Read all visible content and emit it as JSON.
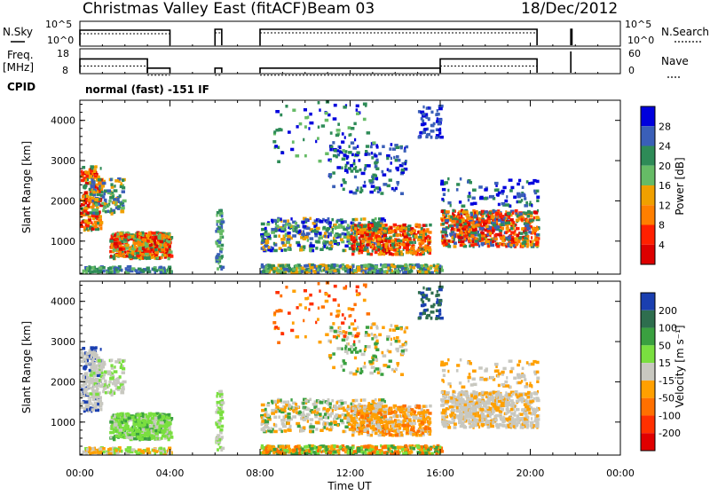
{
  "header": {
    "station": "Christmas Valley East (fitACF)",
    "beam": "Beam 03",
    "date": "18/Dec/2012"
  },
  "strip_labels": {
    "nsky": "N.Sky",
    "freq": "Freq.",
    "freq_unit": "[MHz]",
    "cpid": "CPID",
    "nsearch": "N.Search",
    "nave": "Nave"
  },
  "mode_label": "normal (fast) -151 IF",
  "colors": {
    "power": [
      "#0000dd",
      "#3a5fb8",
      "#2e8b57",
      "#66bb66",
      "#f0a000",
      "#ff7f00",
      "#ff2000",
      "#dd0000"
    ],
    "velocity": [
      "#1a3fb0",
      "#2e6e4e",
      "#3aa040",
      "#7adf40",
      "#c8c8c0",
      "#ffa000",
      "#ff7000",
      "#ff3000",
      "#e00000"
    ]
  },
  "chart_data": [
    {
      "type": "line",
      "title": "N.Sky / N.Search",
      "y_ticks_left": [
        "10^5",
        "10^0"
      ],
      "y_ticks_right": [
        "10^5",
        "10^0"
      ],
      "x_range_hours": [
        0,
        24
      ],
      "segments_hours": [
        [
          0.0,
          4.0
        ],
        [
          6.0,
          6.3
        ],
        [
          8.0,
          20.3
        ],
        [
          21.8,
          21.85
        ]
      ]
    },
    {
      "type": "line",
      "title": "Frequency / Nave",
      "y_ticks_left": [
        "18",
        "8"
      ],
      "y_ticks_right": [
        "60",
        "0"
      ],
      "x_range_hours": [
        0,
        24
      ],
      "freq_steps": [
        {
          "from": 0.0,
          "to": 3.0,
          "mhz": 14
        },
        {
          "from": 3.0,
          "to": 4.0,
          "mhz": 10
        },
        {
          "from": 6.0,
          "to": 6.3,
          "mhz": 10
        },
        {
          "from": 8.0,
          "to": 16.0,
          "mhz": 10
        },
        {
          "from": 16.0,
          "to": 20.3,
          "mhz": 14
        }
      ]
    },
    {
      "type": "heatmap",
      "variable": "Power",
      "ylabel": "Slant Range [km]",
      "y_range_km": [
        180,
        4500
      ],
      "y_ticks": [
        1000,
        2000,
        3000,
        4000
      ],
      "x_range_hours": [
        0,
        24
      ],
      "colorbar_label": "Power [dB]",
      "colorbar_ticks": [
        "28",
        "24",
        "20",
        "16",
        "12",
        "8",
        "4"
      ],
      "colorbar_range": [
        0,
        30
      ]
    },
    {
      "type": "heatmap",
      "variable": "Velocity",
      "ylabel": "Slant Range [km]",
      "xlabel": "Time UT",
      "y_range_km": [
        180,
        4500
      ],
      "y_ticks": [
        1000,
        2000,
        3000,
        4000
      ],
      "x_range_hours": [
        0,
        24
      ],
      "x_ticks": [
        "00:00",
        "04:00",
        "08:00",
        "12:00",
        "16:00",
        "20:00",
        "00:00"
      ],
      "colorbar_label": "Velocity [m s⁻¹]",
      "colorbar_ticks": [
        "200",
        "100",
        "50",
        "15",
        "-15",
        "-50",
        "-100",
        "-200"
      ],
      "colorbar_range": [
        -250,
        250
      ]
    }
  ]
}
